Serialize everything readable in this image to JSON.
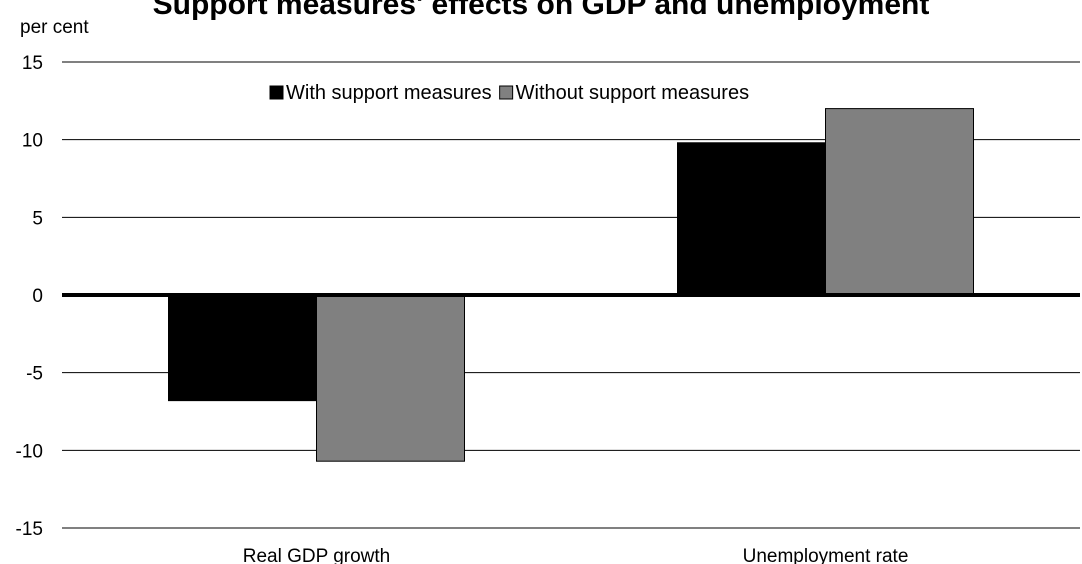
{
  "chart_data": {
    "type": "bar",
    "title": "Support measures' effects on GDP and unemployment",
    "ylabel": "per cent",
    "categories": [
      "Real GDP growth",
      "Unemployment rate"
    ],
    "series": [
      {
        "name": "With support measures",
        "values": [
          -6.8,
          9.8
        ],
        "color": "#000000"
      },
      {
        "name": "Without support measures",
        "values": [
          -10.7,
          12.0
        ],
        "color": "#808080"
      }
    ],
    "ylim": [
      -15,
      15
    ],
    "yticks": [
      15,
      10,
      5,
      0,
      -5,
      -10,
      -15
    ],
    "grid": true,
    "legend": "top-center"
  }
}
